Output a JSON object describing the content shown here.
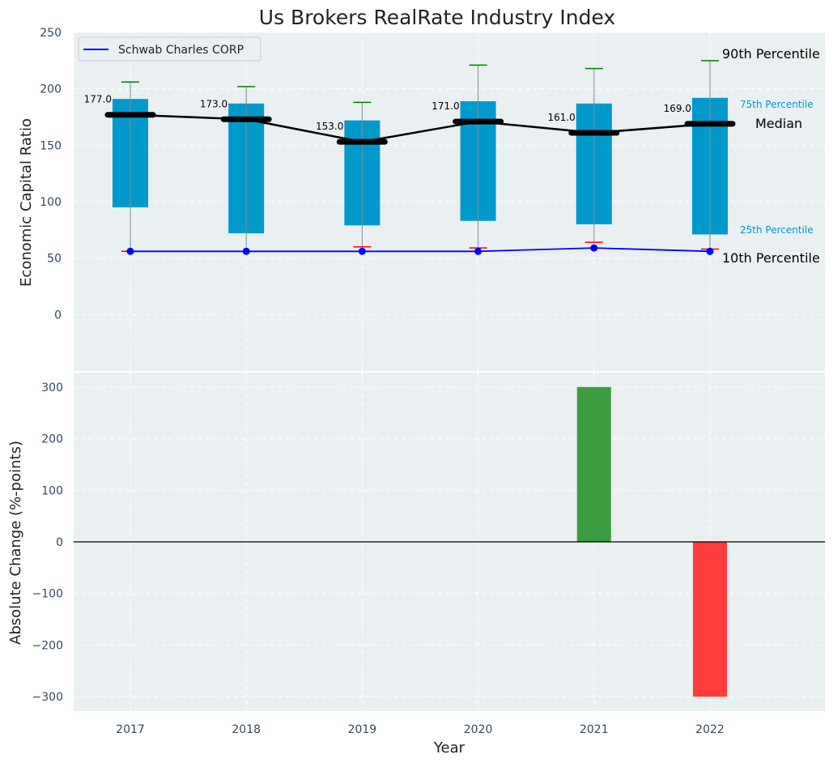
{
  "colors": {
    "panel_bg": "#eaeff1",
    "box": "#0099cc",
    "median": "#000000",
    "line": "#0000ff",
    "p90": "#008000",
    "p10": "#ff0000",
    "positive": "#3a9c3f",
    "negative": "#ff3b3b",
    "label_blue": "#0099cc"
  },
  "chart_data": [
    {
      "type": "box-percentile",
      "title": "Us Brokers RealRate Industry Index",
      "ylabel": "Economic Capital Ratio",
      "ylim": [
        -50,
        250
      ],
      "yticks": [
        0,
        50,
        100,
        150,
        200,
        250
      ],
      "categories": [
        "2017",
        "2018",
        "2019",
        "2020",
        "2021",
        "2022"
      ],
      "p10": [
        56,
        56,
        60,
        59,
        64,
        58
      ],
      "p25": [
        95,
        72,
        79,
        83,
        80,
        71
      ],
      "median": [
        177,
        173,
        153,
        171,
        161,
        169
      ],
      "p75": [
        191,
        187,
        172,
        189,
        187,
        192
      ],
      "p90": [
        206,
        202,
        188,
        221,
        218,
        225
      ],
      "median_labels": [
        "177.0",
        "173.0",
        "153.0",
        "171.0",
        "161.0",
        "169.0"
      ],
      "series": [
        {
          "name": "Schwab Charles CORP",
          "values": [
            56,
            56,
            56,
            56,
            59,
            56
          ]
        }
      ],
      "legend": "top-left",
      "annotations": {
        "p90": "90th Percentile",
        "p75": "75th Percentile",
        "median": "Median",
        "p25": "25th Percentile",
        "p10": "10th Percentile"
      }
    },
    {
      "type": "bar",
      "ylabel": "Absolute Change (%-points)",
      "xlabel": "Year",
      "ylim": [
        -328,
        328
      ],
      "yticks": [
        -300,
        -200,
        -100,
        0,
        100,
        200,
        300
      ],
      "ytick_labels": [
        "−300",
        "−200",
        "−100",
        "0",
        "100",
        "200",
        "300"
      ],
      "categories": [
        "2017",
        "2018",
        "2019",
        "2020",
        "2021",
        "2022"
      ],
      "values": [
        0,
        0,
        0,
        0,
        300,
        -300
      ]
    }
  ]
}
